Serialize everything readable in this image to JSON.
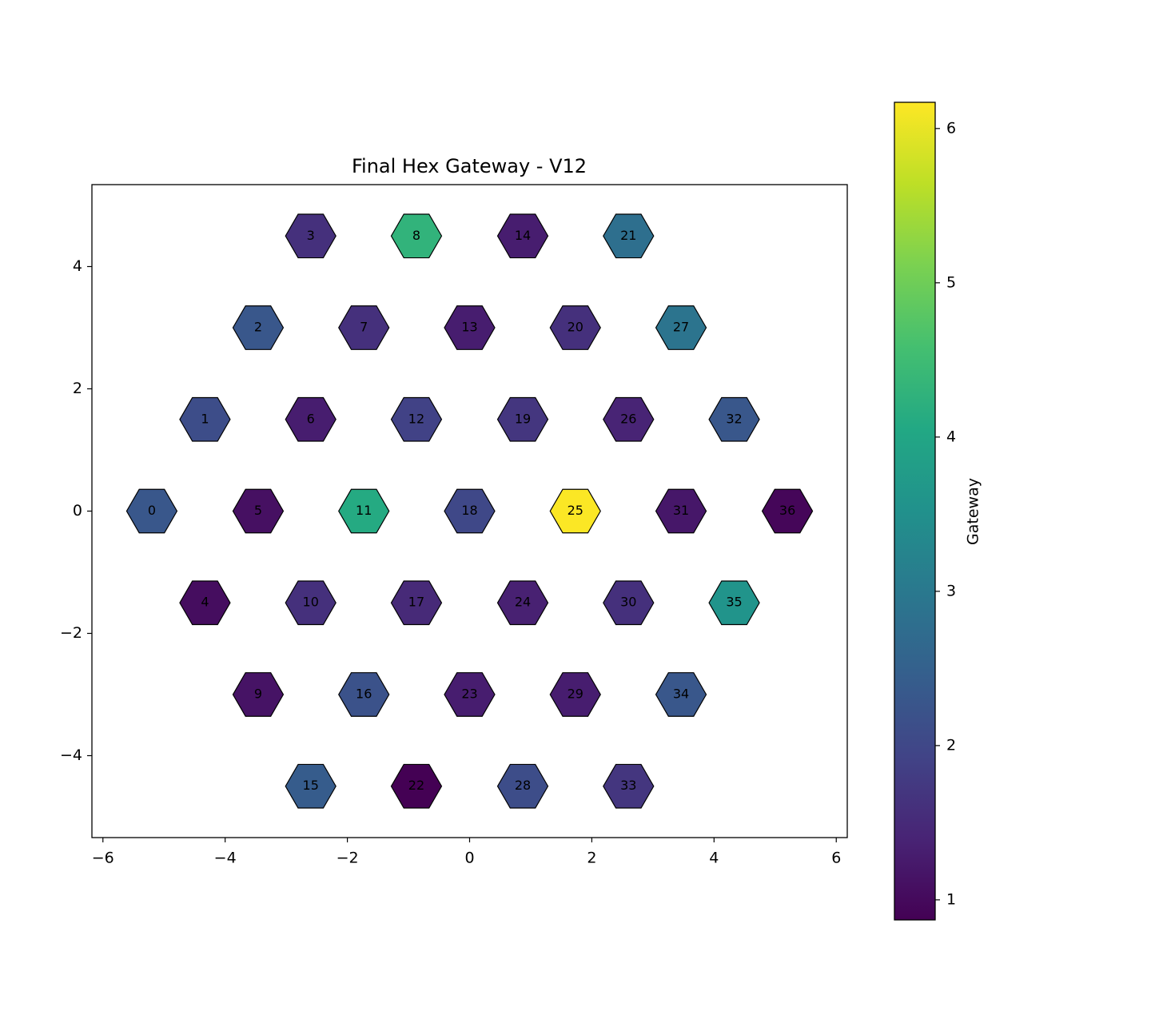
{
  "chart_data": {
    "type": "hexmap",
    "title": "Final Hex Gateway - V12",
    "colorbar_label": "Gateway",
    "colormap": "viridis",
    "ids": [
      0,
      1,
      2,
      3,
      4,
      5,
      6,
      7,
      8,
      9,
      10,
      11,
      12,
      13,
      14,
      15,
      16,
      17,
      18,
      19,
      20,
      21,
      22,
      23,
      24,
      25,
      26,
      27,
      28,
      29,
      30,
      31,
      32,
      33,
      34,
      35,
      36
    ],
    "x": [
      -5.2,
      -4.33,
      -3.46,
      -2.6,
      -4.33,
      -3.46,
      -2.6,
      -1.73,
      -0.87,
      -3.46,
      -2.6,
      -1.73,
      -0.87,
      0,
      0.87,
      -2.6,
      -1.73,
      -0.87,
      0,
      0.87,
      1.73,
      2.6,
      -0.87,
      0,
      0.87,
      1.73,
      2.6,
      3.46,
      0.87,
      1.73,
      2.6,
      3.46,
      4.33,
      2.6,
      3.46,
      4.33,
      5.2
    ],
    "y": [
      0,
      1.5,
      3,
      4.5,
      -1.5,
      0,
      1.5,
      3,
      4.5,
      -3,
      -1.5,
      0,
      1.5,
      3,
      4.5,
      -4.5,
      -3,
      -1.5,
      0,
      1.5,
      3,
      4.5,
      -4.5,
      -3,
      -1.5,
      0,
      1.5,
      3,
      -4.5,
      -3,
      -1.5,
      0,
      1.5,
      -4.5,
      -3,
      -1.5,
      0
    ],
    "values": [
      2.3,
      2.1,
      2.3,
      1.6,
      1.05,
      1.1,
      1.3,
      1.6,
      4.3,
      1.15,
      1.6,
      4.1,
      1.9,
      1.3,
      1.3,
      2.4,
      2.2,
      1.5,
      2.0,
      1.7,
      1.6,
      2.8,
      0.87,
      1.3,
      1.35,
      6.15,
      1.4,
      2.9,
      2.1,
      1.3,
      1.6,
      1.2,
      2.3,
      1.7,
      2.3,
      3.6,
      0.95
    ],
    "xlim": [
      -6.18,
      6.18
    ],
    "ylim": [
      -5.34,
      5.34
    ],
    "xticks": [
      {
        "value": -6,
        "label": "−6"
      },
      {
        "value": -4,
        "label": "−4"
      },
      {
        "value": -2,
        "label": "−2"
      },
      0,
      2,
      4,
      6
    ],
    "yticks": [
      {
        "value": -4,
        "label": "−4"
      },
      {
        "value": -2,
        "label": "−2"
      },
      0,
      2,
      4
    ],
    "clim": [
      0.87,
      6.17
    ],
    "cticks": [
      1,
      2,
      3,
      4,
      5,
      6
    ]
  }
}
